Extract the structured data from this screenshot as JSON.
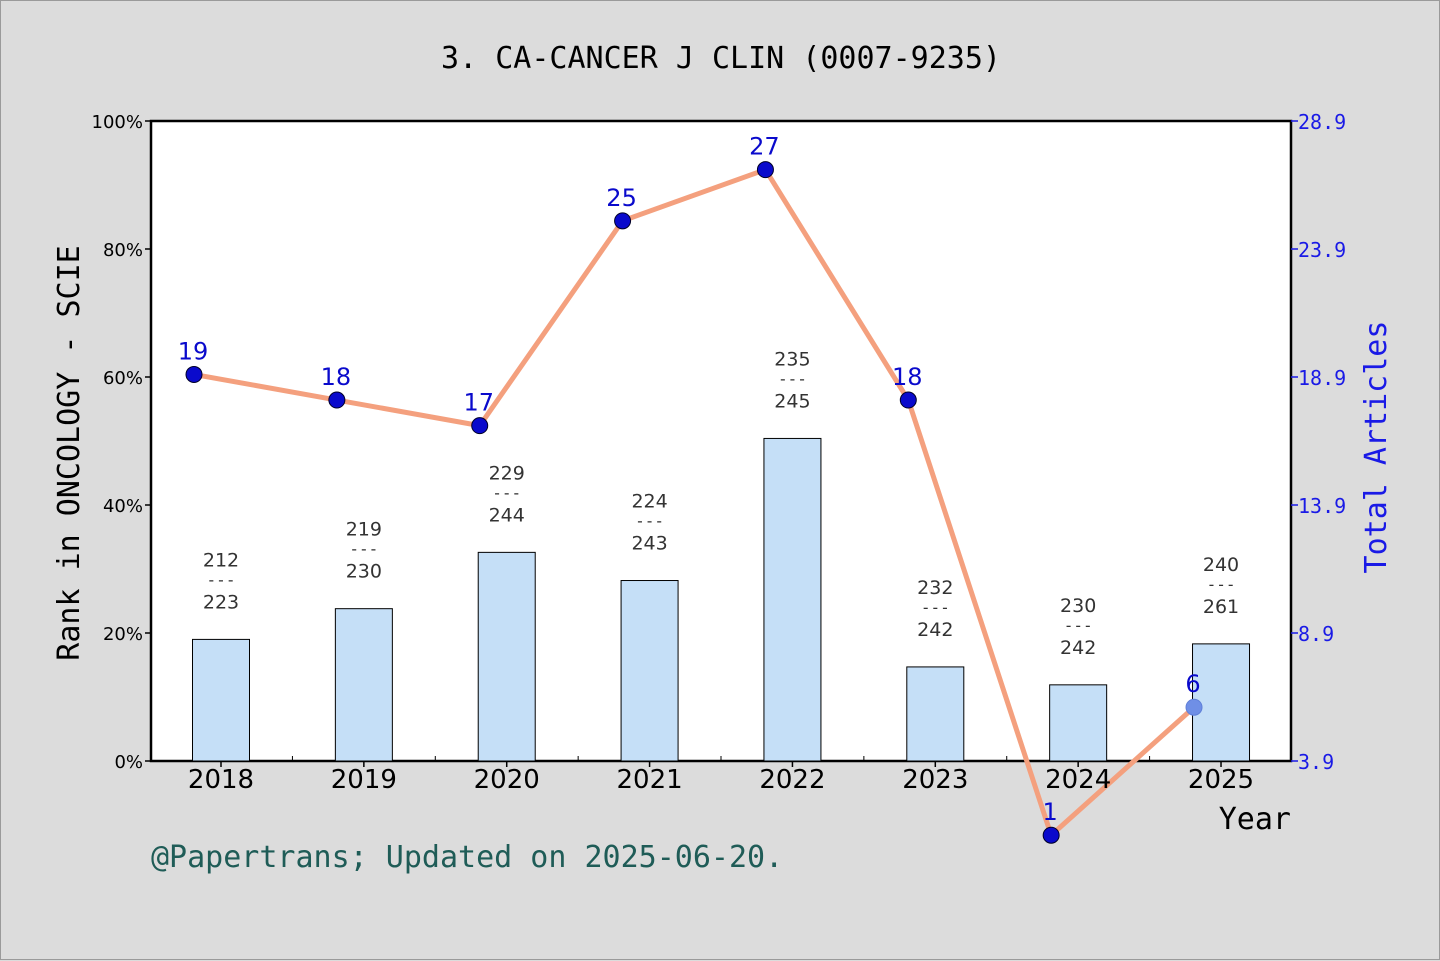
{
  "colors": {
    "background": "#dcdcdc",
    "plot_bg": "#ffffff",
    "bar_fill": "#c5dff7",
    "line": "#f4a07e",
    "marker": "#0a0acc",
    "right_axis": "#1a1ae6",
    "footer": "#1f5c57",
    "text": "#000000",
    "bar_label": "#333333"
  },
  "footer": "@Papertrans; Updated on 2025-06-20.",
  "chart_data": {
    "type": "bar",
    "title": "3. CA-CANCER J CLIN (0007-9235)",
    "xlabel": "Year",
    "ylabel": "Rank in ONCOLOGY - SCIE",
    "y2label": "Total Articles",
    "categories": [
      "2018",
      "2019",
      "2020",
      "2021",
      "2022",
      "2023",
      "2024",
      "2025"
    ],
    "ylim": [
      0,
      100
    ],
    "yticks": [
      "0%",
      "20%",
      "40%",
      "60%",
      "80%",
      "100%"
    ],
    "y2lim": [
      3.9,
      28.9
    ],
    "y2ticks": [
      "3.9",
      "8.9",
      "13.9",
      "18.9",
      "23.9",
      "28.9"
    ],
    "grid": false,
    "series": [
      {
        "kind": "bar",
        "axis": "left",
        "values": [
          19.0,
          23.8,
          32.6,
          28.2,
          50.4,
          14.7,
          11.9,
          18.3
        ],
        "rank": [
          "212",
          "219",
          "229",
          "224",
          "235",
          "232",
          "230",
          "240"
        ],
        "total": [
          "223",
          "230",
          "244",
          "243",
          "245",
          "242",
          "242",
          "261"
        ],
        "separator": "---"
      },
      {
        "kind": "line",
        "axis": "right",
        "values": [
          19,
          18,
          17,
          25,
          27,
          18,
          1,
          6
        ],
        "labels": [
          "19",
          "18",
          "17",
          "25",
          "27",
          "18",
          "1",
          "6"
        ]
      }
    ]
  }
}
